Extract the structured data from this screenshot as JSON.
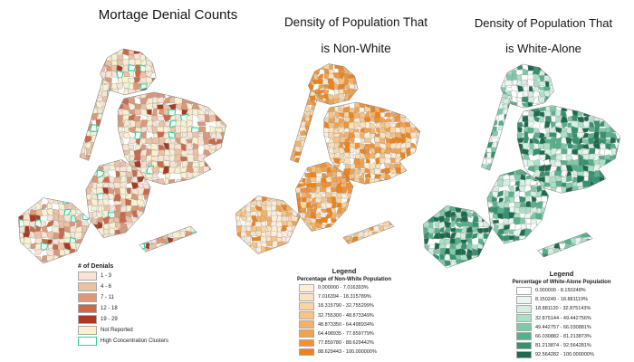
{
  "panels": [
    {
      "title_lines": [
        "Mortage Denial Counts"
      ],
      "map_type": "denial",
      "legend": {
        "title": "# of Denials",
        "items": [
          {
            "label": "1 - 3",
            "color": "#f8e3d4"
          },
          {
            "label": "4 - 6",
            "color": "#eec0a4"
          },
          {
            "label": "7 - 11",
            "color": "#dc9877"
          },
          {
            "label": "12 - 18",
            "color": "#c96a4a"
          },
          {
            "label": "19 - 29",
            "color": "#a83c22"
          },
          {
            "label": "Not Reported",
            "color": "#f7f1d0"
          },
          {
            "label": "High Concentration Clusters",
            "color": "#ffffff",
            "border": "#2fcf9f"
          }
        ]
      }
    },
    {
      "title_lines": [
        "Density of Population That",
        "is Non-White"
      ],
      "map_type": "nonwhite",
      "legend": {
        "title": "Legend",
        "subtitle": "Percentage of Non-White Population",
        "items": [
          {
            "label": "0.000000 - 7.016393%",
            "color": "#fdeedc"
          },
          {
            "label": "7.016394 - 18.315789%",
            "color": "#fbe3c1"
          },
          {
            "label": "18.315790 - 32.755299%",
            "color": "#fad4a3"
          },
          {
            "label": "32.755300 - 48.873349%",
            "color": "#f8c383"
          },
          {
            "label": "48.873350 - 64.498934%",
            "color": "#f6b166"
          },
          {
            "label": "64.498935 - 77.859779%",
            "color": "#f4a14b"
          },
          {
            "label": "77.859780 - 88.629442%",
            "color": "#f19133"
          },
          {
            "label": "88.629443 - 100.000000%",
            "color": "#ee8318"
          }
        ]
      }
    },
    {
      "title_lines": [
        "Density of Population That",
        "is  White-Alone"
      ],
      "map_type": "white",
      "legend": {
        "title": "Legend",
        "subtitle": "Percentage of White-Alone Population",
        "items": [
          {
            "label": "0.000000 - 8.150248%",
            "color": "#ffffff"
          },
          {
            "label": "8.150249 - 18.881119%",
            "color": "#e9f7f1"
          },
          {
            "label": "18.881120 - 32.875143%",
            "color": "#d2efe0"
          },
          {
            "label": "32.875144 - 49.442756%",
            "color": "#a9e0c6"
          },
          {
            "label": "49.442757 - 66.030881%",
            "color": "#7ccaa7"
          },
          {
            "label": "66.030882 - 81.213873%",
            "color": "#54b189"
          },
          {
            "label": "81.213874 - 92.564281%",
            "color": "#34926e"
          },
          {
            "label": "92.564282 - 100.000000%",
            "color": "#1d6b4e"
          }
        ]
      }
    }
  ],
  "map": {
    "tract_stroke": "#8f8f8f",
    "borough_outline": "#6f6f6f",
    "cluster_stroke": "#2fcf9f",
    "cluster_fill": "#f2fcf6"
  }
}
